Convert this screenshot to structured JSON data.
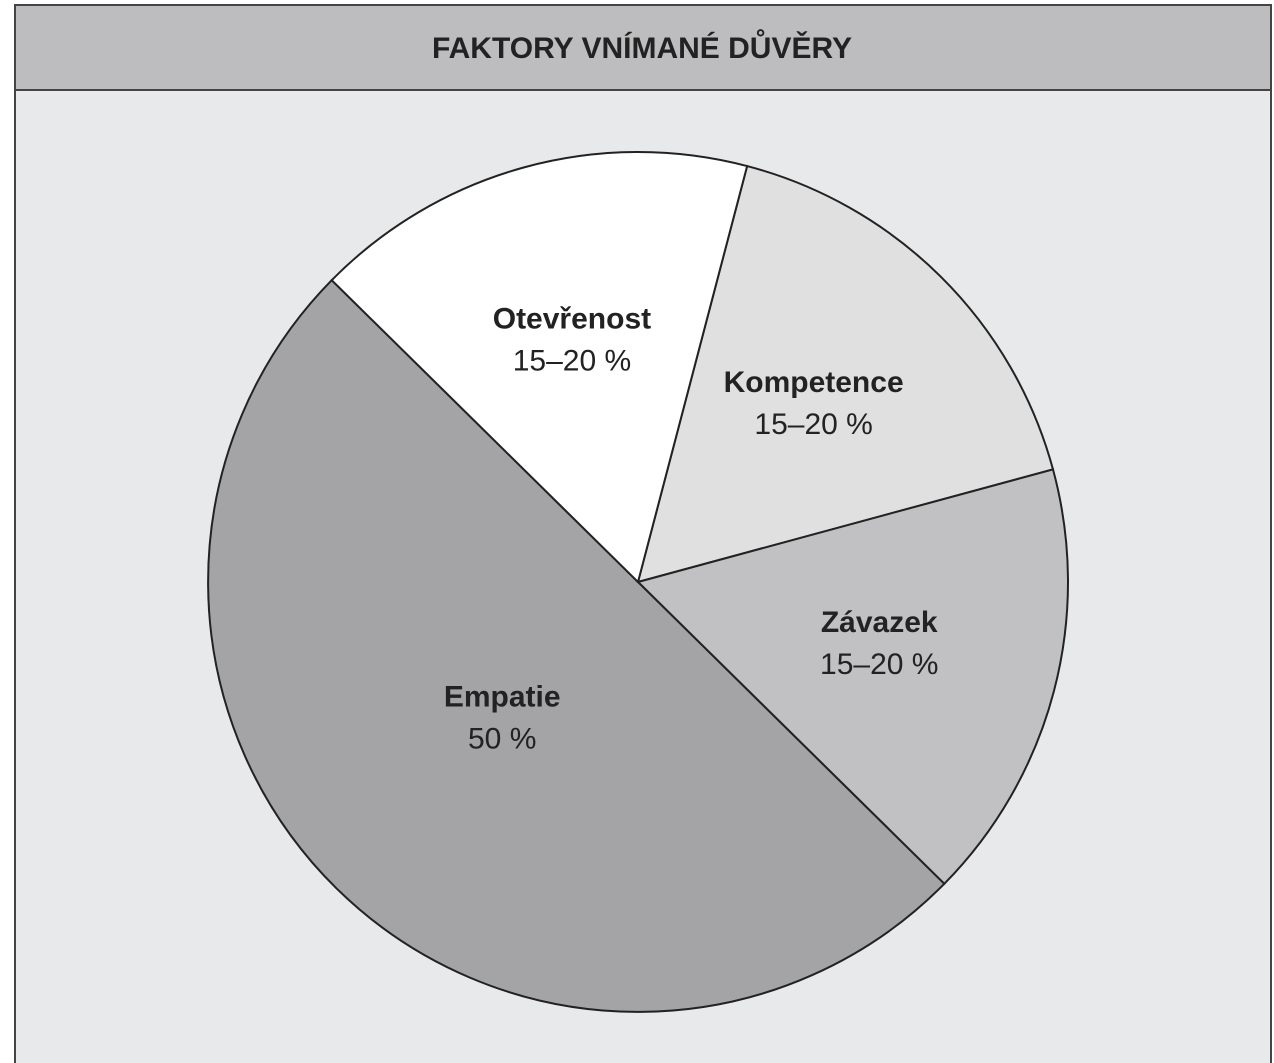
{
  "chart_data": {
    "type": "pie",
    "title": "FAKTORY VNÍMANÉ DŮVĚRY",
    "categories": [
      "Kompetence",
      "Závazek",
      "Empatie",
      "Otevřenost"
    ],
    "values": [
      16.7,
      16.6,
      50,
      16.7
    ],
    "value_labels": [
      "15–20 %",
      "15–20 %",
      "50 %",
      "15–20 %"
    ],
    "colors": [
      "#e0e0e1",
      "#c1c1c3",
      "#a4a4a6",
      "#ffffff"
    ]
  }
}
